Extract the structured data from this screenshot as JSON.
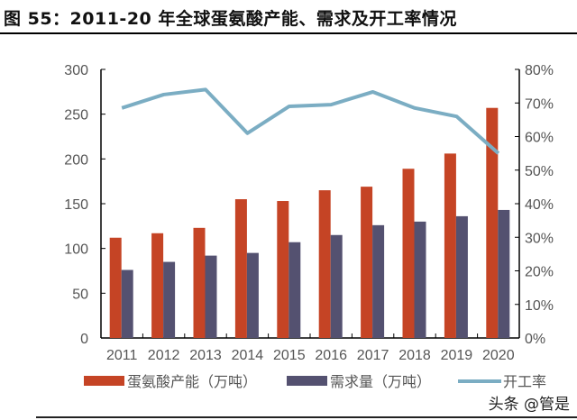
{
  "title": "图 55：2011-20 年全球蛋氨酸产能、需求及开工率情况",
  "watermark": "头条 @管是",
  "colors": {
    "capacity": "#C54425",
    "demand": "#545170",
    "rate": "#7BADC3"
  },
  "chart_data": {
    "type": "bar+line",
    "categories": [
      "2011",
      "2012",
      "2013",
      "2014",
      "2015",
      "2016",
      "2017",
      "2018",
      "2019",
      "2020"
    ],
    "series": [
      {
        "name": "蛋氨酸产能（万吨）",
        "type": "bar",
        "axis": "left",
        "values": [
          112,
          117,
          123,
          155,
          153,
          165,
          169,
          189,
          206,
          257
        ]
      },
      {
        "name": "需求量（万吨）",
        "type": "bar",
        "axis": "left",
        "values": [
          76,
          85,
          92,
          95,
          107,
          115,
          126,
          130,
          136,
          143
        ]
      },
      {
        "name": "开工率",
        "type": "line",
        "axis": "right",
        "values": [
          68.5,
          72.5,
          74,
          61,
          69,
          69.5,
          73.3,
          68.5,
          66,
          55
        ]
      }
    ],
    "ylim": [
      0,
      300
    ],
    "yticks": [
      "0",
      "50",
      "100",
      "150",
      "200",
      "250",
      "300"
    ],
    "y2lim": [
      0,
      80
    ],
    "y2ticks": [
      "0%",
      "10%",
      "20%",
      "30%",
      "40%",
      "50%",
      "60%",
      "70%",
      "80%"
    ],
    "grid": false,
    "legend": "bottom"
  }
}
